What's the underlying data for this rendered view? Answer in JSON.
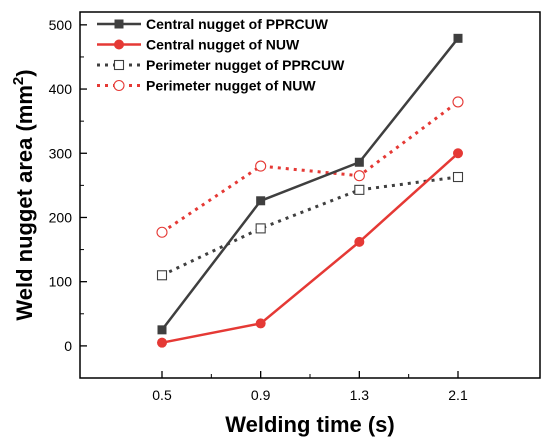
{
  "chart_data": {
    "type": "line",
    "xlabel": "Welding time (s)",
    "ylabel_main": "Weld nugget area (mm",
    "ylabel_sup": "2",
    "ylabel_close": ")",
    "categories": [
      "0.5",
      "0.9",
      "1.3",
      "2.1"
    ],
    "ylim": [
      -50,
      520
    ],
    "yticks": [
      0,
      100,
      200,
      300,
      400,
      500
    ],
    "ytick_labels": [
      "0",
      "100",
      "200",
      "300",
      "400",
      "500"
    ],
    "grid": false,
    "legend_position": "top-left",
    "series": [
      {
        "name": "Central nugget of PPRCUW",
        "values": [
          25,
          226,
          286,
          479
        ],
        "color": "#3f3f3f",
        "style": "solid",
        "marker": "filled-square"
      },
      {
        "name": "Central nugget of NUW",
        "values": [
          5,
          35,
          162,
          300
        ],
        "color": "#e53935",
        "style": "solid",
        "marker": "filled-circle"
      },
      {
        "name": "Perimeter nugget of PPRCUW",
        "values": [
          110,
          183,
          243,
          263
        ],
        "color": "#3f3f3f",
        "style": "dotted",
        "marker": "open-square"
      },
      {
        "name": "Perimeter nugget of NUW",
        "values": [
          177,
          280,
          265,
          380
        ],
        "color": "#e53935",
        "style": "dotted",
        "marker": "open-circle"
      }
    ]
  }
}
